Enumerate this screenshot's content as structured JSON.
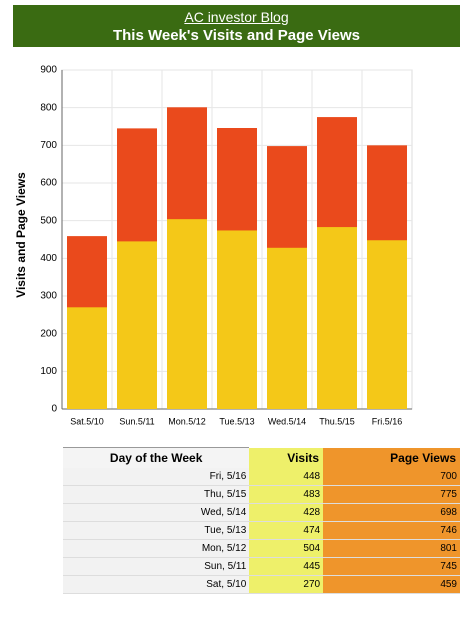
{
  "header": {
    "link": "AC investor Blog",
    "title": "This Week's Visits and Page Views"
  },
  "chart_data": {
    "type": "bar",
    "y_label": "Visits and Page Views",
    "categories": [
      "Sat.5/10",
      "Sun.5/11",
      "Mon.5/12",
      "Tue.5/13",
      "Wed.5/14",
      "Thu.5/15",
      "Fri.5/16"
    ],
    "series": [
      {
        "name": "Page Views",
        "color": "#ea4a1c",
        "values": [
          459,
          745,
          801,
          746,
          698,
          775,
          700
        ]
      },
      {
        "name": "Visits",
        "color": "#f4c818",
        "values": [
          270,
          445,
          504,
          474,
          428,
          483,
          448
        ]
      }
    ],
    "ylim": [
      0,
      900
    ],
    "yticks": [
      0,
      100,
      200,
      300,
      400,
      500,
      600,
      700,
      800,
      900
    ],
    "grid": true
  },
  "table": {
    "header": [
      "Day of the Week",
      "Visits",
      "Page Views"
    ],
    "rows": [
      [
        "Fri, 5/16",
        448,
        700
      ],
      [
        "Thu, 5/15",
        483,
        775
      ],
      [
        "Wed, 5/14",
        428,
        698
      ],
      [
        "Tue, 5/13",
        474,
        746
      ],
      [
        "Mon, 5/12",
        504,
        801
      ],
      [
        "Sun, 5/11",
        445,
        745
      ],
      [
        "Sat, 5/10",
        270,
        459
      ]
    ]
  }
}
